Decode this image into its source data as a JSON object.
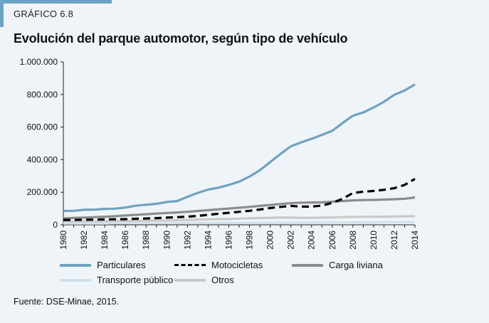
{
  "header": {
    "label": "GRÁFICO 6.8"
  },
  "source": "Fuente: DSE-Minae, 2015.",
  "chart_data": {
    "type": "line",
    "title": "Evolución del parque automotor, según tipo de vehículo",
    "xlabel": "",
    "ylabel": "",
    "x": [
      1980,
      1981,
      1982,
      1983,
      1984,
      1985,
      1986,
      1987,
      1988,
      1989,
      1990,
      1991,
      1992,
      1993,
      1994,
      1995,
      1996,
      1997,
      1998,
      1999,
      2000,
      2001,
      2002,
      2003,
      2004,
      2005,
      2006,
      2007,
      2008,
      2009,
      2010,
      2011,
      2012,
      2013,
      2014
    ],
    "x_ticks": [
      "1980",
      "1982",
      "1984",
      "1986",
      "1988",
      "1990",
      "1992",
      "1994",
      "1996",
      "1998",
      "2000",
      "2002",
      "2004",
      "2006",
      "2008",
      "2010",
      "2012",
      "2014"
    ],
    "ylim": [
      0,
      1000000
    ],
    "y_ticks": [
      {
        "value": 0,
        "label": "0"
      },
      {
        "value": 200000,
        "label": "200.000"
      },
      {
        "value": 400000,
        "label": "400.000"
      },
      {
        "value": 600000,
        "label": "600.000"
      },
      {
        "value": 800000,
        "label": "800.000"
      },
      {
        "value": 1000000,
        "label": "1.000.000"
      }
    ],
    "grid": false,
    "legend_position": "bottom",
    "series": [
      {
        "name": "Particulares",
        "color": "#6fa2c1",
        "style": "solid",
        "values": [
          85000,
          86000,
          92000,
          93000,
          98000,
          99000,
          106000,
          117000,
          123000,
          129000,
          140000,
          146000,
          172000,
          196000,
          216000,
          228000,
          245000,
          265000,
          296000,
          335000,
          385000,
          435000,
          482000,
          506000,
          528000,
          552000,
          577000,
          625000,
          670000,
          690000,
          720000,
          755000,
          798000,
          825000,
          862000
        ]
      },
      {
        "name": "Motocicletas",
        "color": "#000000",
        "style": "dashed",
        "values": [
          30000,
          30000,
          31000,
          32000,
          33000,
          34000,
          35000,
          37000,
          39000,
          41000,
          44000,
          47000,
          50000,
          55000,
          61000,
          68000,
          74000,
          80000,
          86000,
          94000,
          103000,
          110000,
          116000,
          112000,
          112000,
          118000,
          135000,
          160000,
          195000,
          203000,
          208000,
          215000,
          225000,
          245000,
          282000
        ]
      },
      {
        "name": "Carga liviana",
        "color": "#8c8c8c",
        "style": "solid",
        "values": [
          40000,
          42000,
          44000,
          47000,
          50000,
          53000,
          57000,
          61000,
          65000,
          69000,
          73000,
          76000,
          80000,
          85000,
          90000,
          95000,
          100000,
          105000,
          110000,
          116000,
          122000,
          128000,
          133000,
          136000,
          137000,
          138000,
          142000,
          146000,
          150000,
          152000,
          153000,
          155000,
          157000,
          160000,
          168000
        ]
      },
      {
        "name": "Transporte público",
        "color": "#cfe2ec",
        "style": "solid",
        "values": [
          8000,
          8000,
          8000,
          8000,
          8000,
          9000,
          9000,
          9000,
          9000,
          9000,
          10000,
          10000,
          10000,
          11000,
          11000,
          11000,
          11000,
          12000,
          12000,
          12000,
          12000,
          12000,
          13000,
          13000,
          13000,
          13000,
          14000,
          14000,
          15000,
          15000,
          15000,
          16000,
          16000,
          16000,
          17000
        ]
      },
      {
        "name": "Otros",
        "color": "#c9c9c9",
        "style": "solid",
        "values": [
          20000,
          20000,
          21000,
          21000,
          22000,
          22000,
          23000,
          24000,
          25000,
          26000,
          27000,
          28000,
          30000,
          32000,
          33000,
          35000,
          36000,
          38000,
          40000,
          42000,
          43000,
          45000,
          44000,
          43000,
          43000,
          44000,
          45000,
          47000,
          49000,
          49000,
          50000,
          50000,
          51000,
          52000,
          53000
        ]
      }
    ]
  }
}
